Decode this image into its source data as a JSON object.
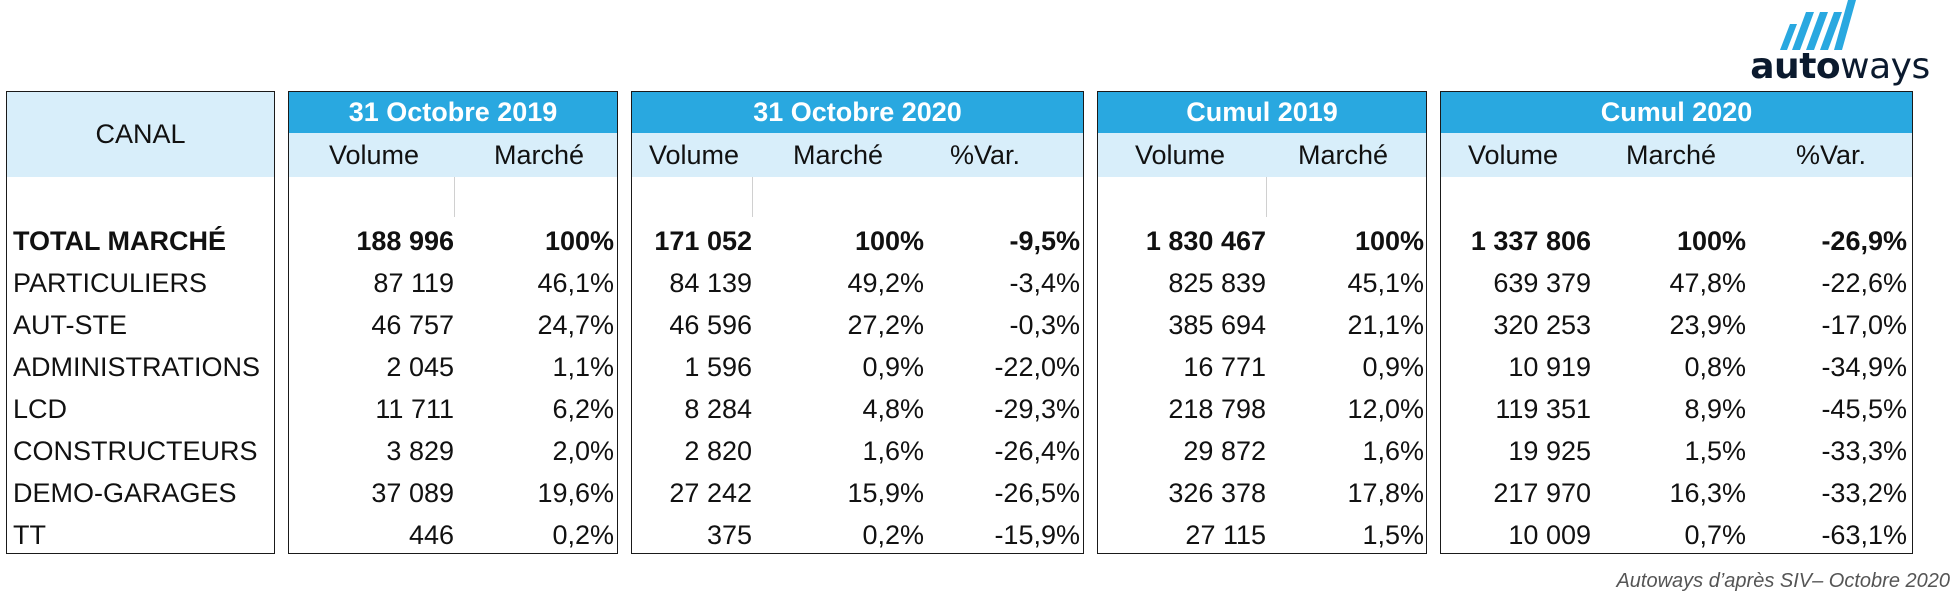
{
  "logo": {
    "text_bold": "auto",
    "text_light": "ways"
  },
  "canal": {
    "header": "CANAL",
    "rows": [
      "TOTAL MARCHÉ",
      "PARTICULIERS",
      "AUT-STE",
      "ADMINISTRATIONS",
      "LCD",
      "CONSTRUCTEURS",
      "DEMO-GARAGES",
      "TT"
    ]
  },
  "blocks": [
    {
      "title": "31 Octobre 2019",
      "cols": [
        "Volume",
        "Marché"
      ],
      "rows": [
        [
          "188 996",
          "100%"
        ],
        [
          "87 119",
          "46,1%"
        ],
        [
          "46 757",
          "24,7%"
        ],
        [
          "2 045",
          "1,1%"
        ],
        [
          "11 711",
          "6,2%"
        ],
        [
          "3 829",
          "2,0%"
        ],
        [
          "37 089",
          "19,6%"
        ],
        [
          "446",
          "0,2%"
        ]
      ]
    },
    {
      "title": "31 Octobre 2020",
      "cols": [
        "Volume",
        "Marché",
        "%Var."
      ],
      "rows": [
        [
          "171 052",
          "100%",
          "-9,5%"
        ],
        [
          "84 139",
          "49,2%",
          "-3,4%"
        ],
        [
          "46 596",
          "27,2%",
          "-0,3%"
        ],
        [
          "1 596",
          "0,9%",
          "-22,0%"
        ],
        [
          "8 284",
          "4,8%",
          "-29,3%"
        ],
        [
          "2 820",
          "1,6%",
          "-26,4%"
        ],
        [
          "27 242",
          "15,9%",
          "-26,5%"
        ],
        [
          "375",
          "0,2%",
          "-15,9%"
        ]
      ]
    },
    {
      "title": "Cumul 2019",
      "cols": [
        "Volume",
        "Marché"
      ],
      "rows": [
        [
          "1 830 467",
          "100%"
        ],
        [
          "825 839",
          "45,1%"
        ],
        [
          "385 694",
          "21,1%"
        ],
        [
          "16 771",
          "0,9%"
        ],
        [
          "218 798",
          "12,0%"
        ],
        [
          "29 872",
          "1,6%"
        ],
        [
          "326 378",
          "17,8%"
        ],
        [
          "27 115",
          "1,5%"
        ]
      ]
    },
    {
      "title": "Cumul 2020",
      "cols": [
        "Volume",
        "Marché",
        "%Var."
      ],
      "rows": [
        [
          "1 337 806",
          "100%",
          "-26,9%"
        ],
        [
          "639 379",
          "47,8%",
          "-22,6%"
        ],
        [
          "320 253",
          "23,9%",
          "-17,0%"
        ],
        [
          "10 919",
          "0,8%",
          "-34,9%"
        ],
        [
          "119 351",
          "8,9%",
          "-45,5%"
        ],
        [
          "19 925",
          "1,5%",
          "-33,3%"
        ],
        [
          "217 970",
          "16,3%",
          "-33,2%"
        ],
        [
          "10 009",
          "0,7%",
          "-63,1%"
        ]
      ]
    }
  ],
  "source": "Autoways d’après SIV– Octobre 2020",
  "colors": {
    "header_blue": "#29a8e0",
    "subheader_blue": "#d8eefa",
    "logo_blue": "#29a8e0"
  }
}
